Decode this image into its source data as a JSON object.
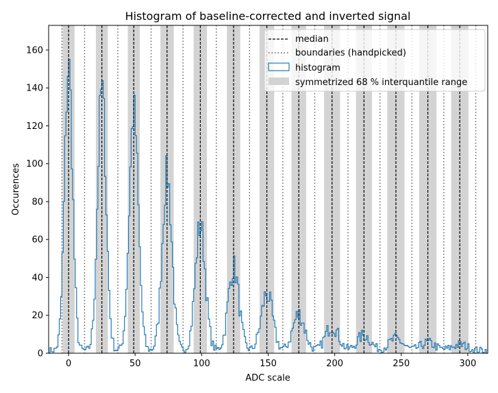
{
  "chart_data": {
    "type": "histogram",
    "title": "Histogram of baseline-corrected and inverted signal",
    "xlabel": "ADC scale",
    "ylabel": "Occurences",
    "xlim": [
      -15,
      315
    ],
    "ylim": [
      0,
      173
    ],
    "xticks": [
      0,
      50,
      100,
      150,
      200,
      250,
      300
    ],
    "yticks": [
      0,
      20,
      40,
      60,
      80,
      100,
      120,
      140,
      160
    ],
    "grid": false,
    "legend_position": "top-right",
    "legend": [
      {
        "label": "median",
        "style": "dashed-line"
      },
      {
        "label": "boundaries (handpicked)",
        "style": "dotted-line"
      },
      {
        "label": "histogram",
        "style": "step"
      },
      {
        "label": "symmetrized 68 % interquantile range",
        "style": "band"
      }
    ],
    "colors": {
      "histogram": "#1f77b4",
      "band": "#d3d3d3",
      "median": "#000000",
      "boundary": "#555555"
    },
    "medians": [
      0,
      25,
      49,
      74,
      99,
      124,
      149,
      173,
      198,
      222,
      246,
      270,
      294
    ],
    "band_halfwidths": [
      4.5,
      4.5,
      4.5,
      5,
      5,
      5,
      5.5,
      5.5,
      6,
      6,
      6.5,
      6.5,
      6.5
    ],
    "boundaries": [
      -5,
      12,
      37,
      62,
      86,
      111,
      136,
      161,
      185,
      210,
      234,
      258,
      282,
      306
    ],
    "peaks": [
      {
        "center": 0,
        "amplitude": 150,
        "sigma": 3.0
      },
      {
        "center": 25,
        "amplitude": 138,
        "sigma": 3.2
      },
      {
        "center": 49,
        "amplitude": 126,
        "sigma": 3.4
      },
      {
        "center": 74,
        "amplitude": 93,
        "sigma": 3.6
      },
      {
        "center": 99,
        "amplitude": 66,
        "sigma": 3.8
      },
      {
        "center": 124,
        "amplitude": 44,
        "sigma": 4.0
      },
      {
        "center": 149,
        "amplitude": 30,
        "sigma": 4.2
      },
      {
        "center": 173,
        "amplitude": 19,
        "sigma": 4.5
      },
      {
        "center": 198,
        "amplitude": 13,
        "sigma": 4.8
      },
      {
        "center": 222,
        "amplitude": 8,
        "sigma": 5.0
      },
      {
        "center": 246,
        "amplitude": 6,
        "sigma": 5.2
      },
      {
        "center": 270,
        "amplitude": 4,
        "sigma": 5.5
      },
      {
        "center": 294,
        "amplitude": 3,
        "sigma": 5.8
      }
    ],
    "background_level": 1.5,
    "bin_width": 1
  }
}
